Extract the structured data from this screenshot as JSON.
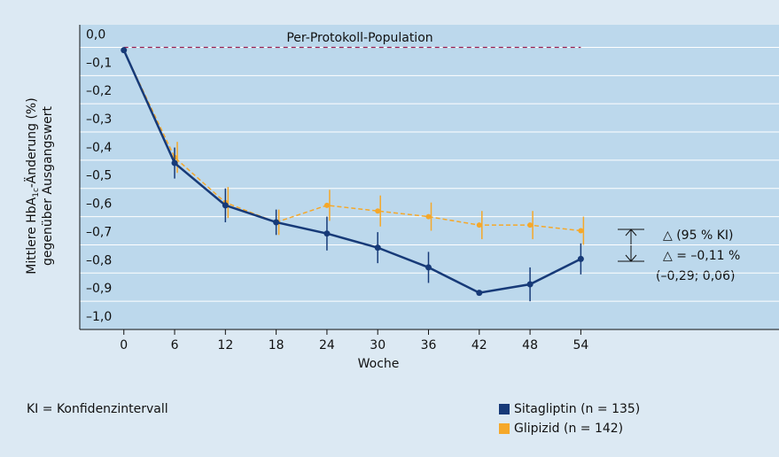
{
  "chart_data": {
    "type": "line",
    "title": "Per-Protokoll-Population",
    "xlabel": "Woche",
    "ylabel": {
      "pre": "Mittlere HbA",
      "sub": "1c",
      "post": "-Änderung (%)",
      "line2": "gegenüber Ausgangswert"
    },
    "x": [
      0,
      6,
      12,
      18,
      24,
      30,
      36,
      42,
      48,
      54
    ],
    "series": [
      {
        "name": "Sitagliptin (n = 135)",
        "color": "#173a78",
        "values": [
          -0.01,
          -0.41,
          -0.56,
          -0.62,
          -0.66,
          -0.71,
          -0.78,
          -0.87,
          -0.84,
          -0.75
        ],
        "errors": [
          0,
          0.055,
          0.06,
          0.045,
          0.06,
          0.055,
          0.055,
          0,
          0.06,
          0.055
        ]
      },
      {
        "name": "Glipizid (n = 142)",
        "color": "#f5a82a",
        "values": [
          -0.01,
          -0.39,
          -0.55,
          -0.62,
          -0.56,
          -0.58,
          -0.6,
          -0.63,
          -0.63,
          -0.65
        ],
        "errors": [
          0,
          0.055,
          0.055,
          0.045,
          0.055,
          0.055,
          0.05,
          0.05,
          0.05,
          0.05
        ]
      }
    ],
    "reference_line": {
      "value": 0,
      "color": "#9a2050",
      "from": 0,
      "to": 54
    },
    "xlim": [
      -5,
      77
    ],
    "ylim": [
      -1.0,
      0.08
    ],
    "xticks": [
      0,
      6,
      12,
      18,
      24,
      30,
      36,
      42,
      48,
      54
    ],
    "yticks": [
      {
        "value": 0,
        "label": "0,0"
      },
      {
        "value": -0.1,
        "label": "–0,1"
      },
      {
        "value": -0.2,
        "label": "–0,2"
      },
      {
        "value": -0.3,
        "label": "–0,3"
      },
      {
        "value": -0.4,
        "label": "–0,4"
      },
      {
        "value": -0.5,
        "label": "–0,5"
      },
      {
        "value": -0.6,
        "label": "–0,6"
      },
      {
        "value": -0.7,
        "label": "–0,7"
      },
      {
        "value": -0.8,
        "label": "–0,8"
      },
      {
        "value": -0.9,
        "label": "–0,9"
      },
      {
        "value": -1.0,
        "label": "–1,0"
      }
    ],
    "grid": true,
    "annotation": [
      "△ (95 % KI)",
      "△ = –0,11 %",
      "(–0,29; 0,06)"
    ],
    "footnote": "KI = Konfidenzintervall"
  }
}
